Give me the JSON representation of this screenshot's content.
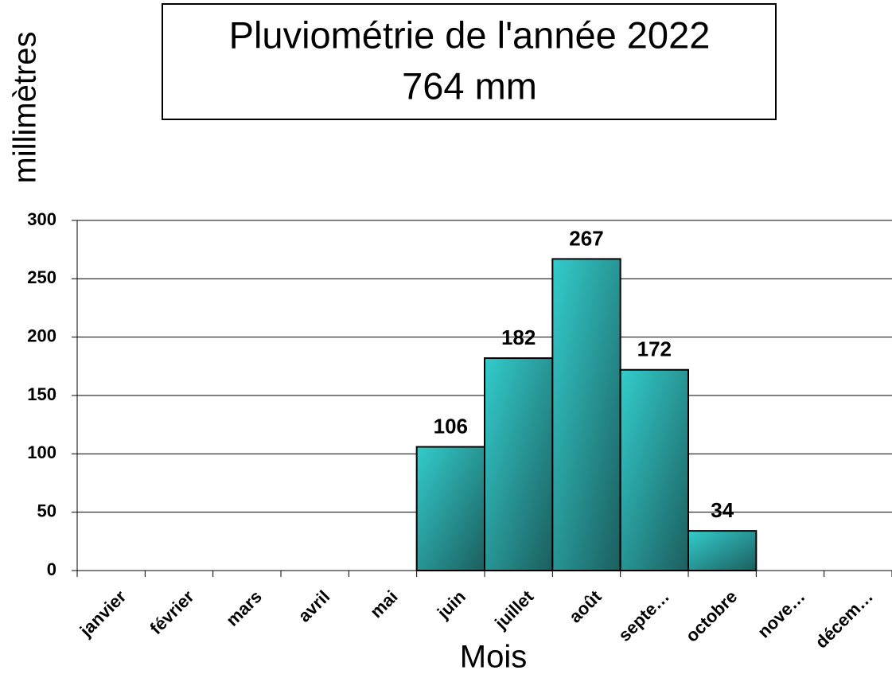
{
  "chart_data": {
    "type": "bar",
    "title": "Pluviométrie de l'année 2022",
    "subtitle": "764 mm",
    "y_label": "millimètres",
    "x_label": "Mois",
    "categories": [
      "janvier",
      "février",
      "mars",
      "avril",
      "mai",
      "juin",
      "juillet",
      "août",
      "septe…",
      "octobre",
      "nove…",
      "décem…"
    ],
    "values": [
      null,
      null,
      null,
      null,
      null,
      106,
      182,
      267,
      172,
      34,
      null,
      null
    ],
    "color": "#33cccc",
    "ylim": [
      0,
      300
    ],
    "yticks": [
      0,
      50,
      100,
      150,
      200,
      250,
      300
    ],
    "grid": true
  }
}
